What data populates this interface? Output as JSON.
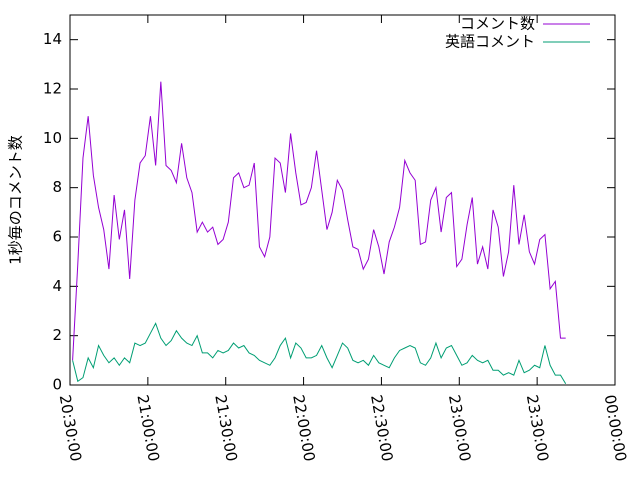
{
  "chart_data": {
    "type": "line",
    "ylabel": "1秒毎のコメント数",
    "x": [
      "20:31:00",
      "20:33:00",
      "20:35:00",
      "20:37:00",
      "20:39:00",
      "20:41:00",
      "20:43:00",
      "20:45:00",
      "20:47:00",
      "20:49:00",
      "20:51:00",
      "20:53:00",
      "20:55:00",
      "20:57:00",
      "20:59:00",
      "21:01:00",
      "21:03:00",
      "21:05:00",
      "21:07:00",
      "21:09:00",
      "21:11:00",
      "21:13:00",
      "21:15:00",
      "21:17:00",
      "21:19:00",
      "21:21:00",
      "21:23:00",
      "21:25:00",
      "21:27:00",
      "21:29:00",
      "21:31:00",
      "21:33:00",
      "21:35:00",
      "21:37:00",
      "21:39:00",
      "21:41:00",
      "21:43:00",
      "21:45:00",
      "21:47:00",
      "21:49:00",
      "21:51:00",
      "21:53:00",
      "21:55:00",
      "21:57:00",
      "21:59:00",
      "22:01:00",
      "22:03:00",
      "22:05:00",
      "22:07:00",
      "22:09:00",
      "22:11:00",
      "22:13:00",
      "22:15:00",
      "22:17:00",
      "22:19:00",
      "22:21:00",
      "22:23:00",
      "22:25:00",
      "22:27:00",
      "22:29:00",
      "22:31:00",
      "22:33:00",
      "22:35:00",
      "22:37:00",
      "22:39:00",
      "22:41:00",
      "22:43:00",
      "22:45:00",
      "22:47:00",
      "22:49:00",
      "22:51:00",
      "22:53:00",
      "22:55:00",
      "22:57:00",
      "22:59:00",
      "23:01:00",
      "23:03:00",
      "23:05:00",
      "23:07:00",
      "23:09:00",
      "23:11:00",
      "23:13:00",
      "23:15:00",
      "23:17:00",
      "23:19:00",
      "23:21:00",
      "23:23:00",
      "23:25:00",
      "23:27:00",
      "23:29:00",
      "23:31:00",
      "23:33:00",
      "23:35:00",
      "23:37:00",
      "23:39:00",
      "23:41:00"
    ],
    "series": [
      {
        "name": "コメント数",
        "color": "#9400d3",
        "values": [
          1.0,
          4.9,
          9.2,
          10.9,
          8.5,
          7.2,
          6.3,
          4.7,
          7.7,
          5.9,
          7.1,
          4.3,
          7.5,
          9.0,
          9.3,
          10.9,
          8.9,
          12.3,
          8.9,
          8.7,
          8.2,
          9.8,
          8.4,
          7.8,
          6.2,
          6.6,
          6.2,
          6.4,
          5.7,
          5.9,
          6.6,
          8.4,
          8.6,
          8.0,
          8.1,
          9.0,
          5.6,
          5.2,
          6.0,
          9.2,
          9.0,
          7.8,
          10.2,
          8.6,
          7.3,
          7.4,
          8.0,
          9.5,
          7.9,
          6.3,
          7.0,
          8.3,
          7.9,
          6.7,
          5.6,
          5.5,
          4.7,
          5.1,
          6.3,
          5.6,
          4.5,
          5.8,
          6.4,
          7.2,
          9.1,
          8.6,
          8.3,
          5.7,
          5.8,
          7.5,
          8.0,
          6.2,
          7.6,
          7.8,
          4.8,
          5.1,
          6.5,
          7.6,
          4.9,
          5.6,
          4.7,
          7.1,
          6.4,
          4.4,
          5.4,
          8.1,
          5.7,
          6.9,
          5.4,
          4.9,
          5.9,
          6.1,
          3.9,
          4.2,
          1.9,
          1.9
        ]
      },
      {
        "name": "英語コメント",
        "color": "#009e73",
        "values": [
          1.0,
          0.15,
          0.3,
          1.1,
          0.7,
          1.6,
          1.2,
          0.9,
          1.1,
          0.8,
          1.1,
          0.9,
          1.7,
          1.6,
          1.7,
          2.1,
          2.5,
          1.9,
          1.6,
          1.8,
          2.2,
          1.9,
          1.7,
          1.6,
          2.0,
          1.3,
          1.3,
          1.1,
          1.4,
          1.3,
          1.4,
          1.7,
          1.5,
          1.6,
          1.3,
          1.2,
          1.0,
          0.9,
          0.8,
          1.1,
          1.6,
          1.9,
          1.1,
          1.7,
          1.5,
          1.1,
          1.1,
          1.2,
          1.6,
          1.1,
          0.7,
          1.2,
          1.7,
          1.5,
          1.0,
          0.9,
          1.0,
          0.8,
          1.2,
          0.9,
          0.8,
          0.7,
          1.1,
          1.4,
          1.5,
          1.6,
          1.5,
          0.9,
          0.8,
          1.1,
          1.7,
          1.1,
          1.5,
          1.6,
          1.2,
          0.8,
          0.9,
          1.2,
          1.0,
          0.9,
          1.0,
          0.6,
          0.6,
          0.4,
          0.5,
          0.4,
          1.0,
          0.5,
          0.6,
          0.8,
          0.7,
          1.6,
          0.8,
          0.4,
          0.4,
          0.05
        ]
      }
    ],
    "xlim": [
      "20:30:00",
      "00:00:00"
    ],
    "xticks": [
      "20:30:00",
      "21:00:00",
      "21:30:00",
      "22:00:00",
      "22:30:00",
      "23:00:00",
      "23:30:00",
      "00:00:00"
    ],
    "ylim": [
      0,
      15
    ],
    "yticks": [
      0,
      2,
      4,
      6,
      8,
      10,
      12,
      14
    ],
    "legend": "top-right"
  }
}
